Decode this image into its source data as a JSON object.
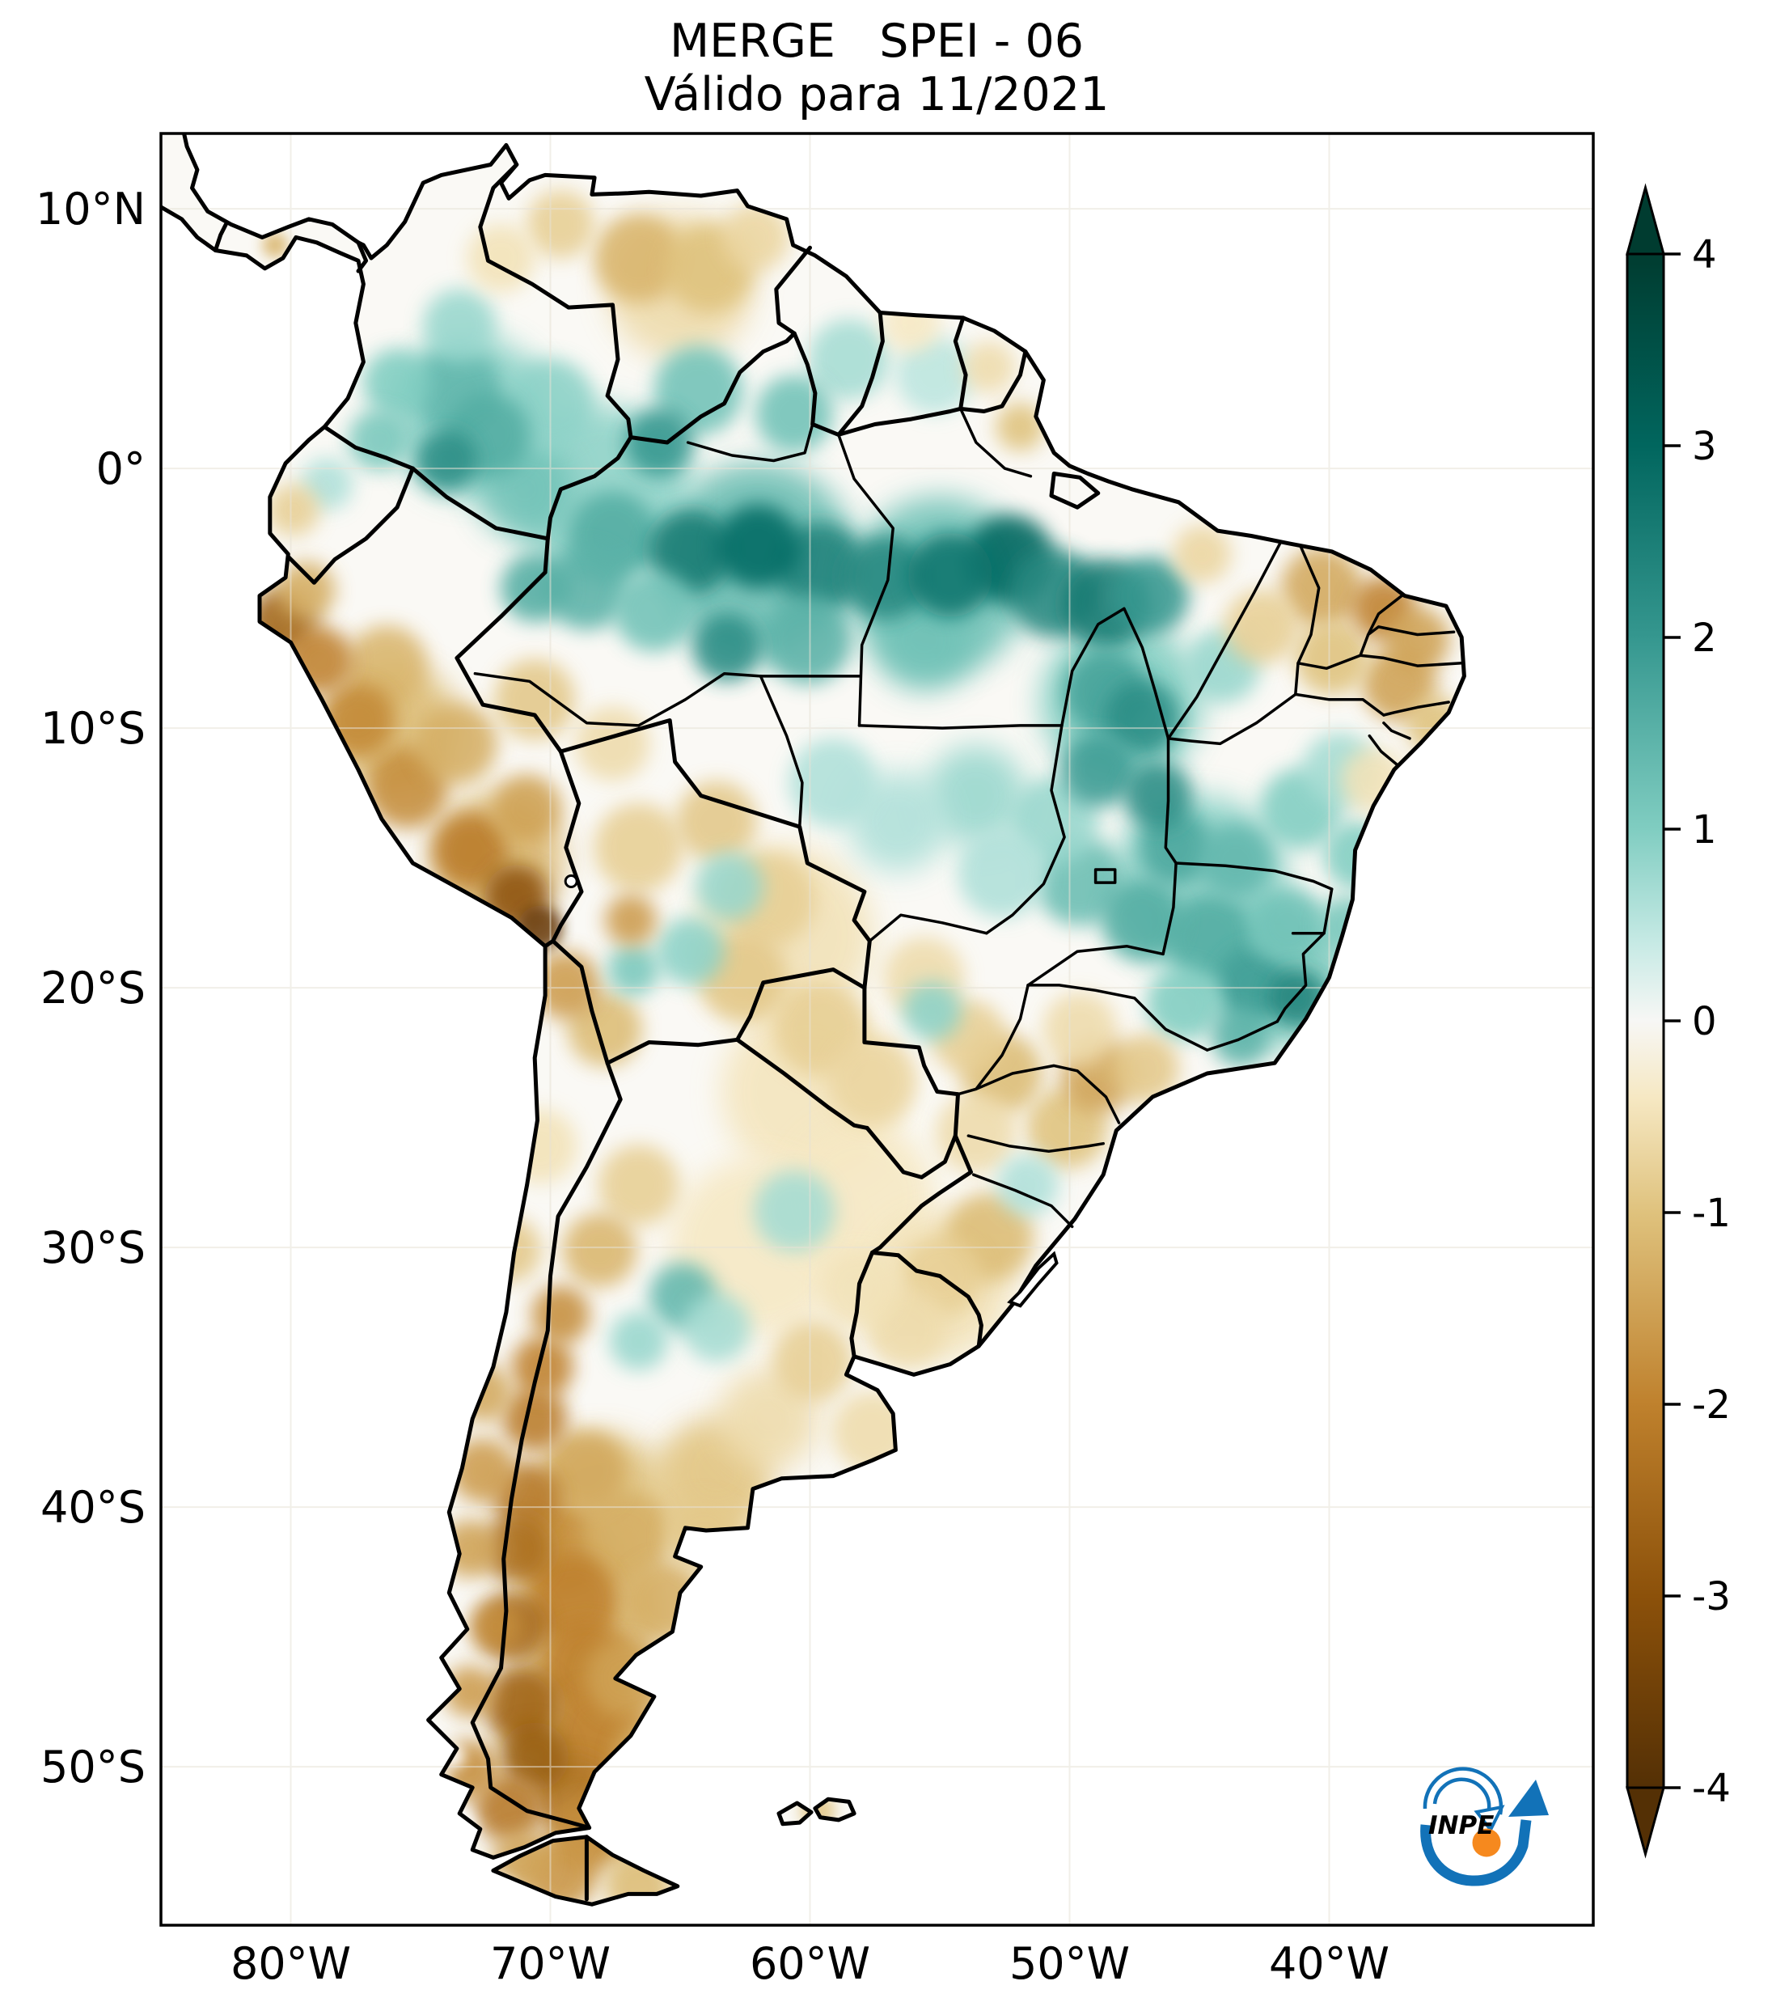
{
  "title": {
    "line1": "MERGE   SPEI - 06",
    "line2": "Válido para 11/2021"
  },
  "axes": {
    "lat_ticks": [
      {
        "label": "10°N",
        "deg": 10
      },
      {
        "label": "0°",
        "deg": 0
      },
      {
        "label": "10°S",
        "deg": -10
      },
      {
        "label": "20°S",
        "deg": -20
      },
      {
        "label": "30°S",
        "deg": -30
      },
      {
        "label": "40°S",
        "deg": -40
      },
      {
        "label": "50°S",
        "deg": -50
      }
    ],
    "lon_ticks": [
      {
        "label": "80°W",
        "deg": -80
      },
      {
        "label": "70°W",
        "deg": -70
      },
      {
        "label": "60°W",
        "deg": -60
      },
      {
        "label": "50°W",
        "deg": -50
      },
      {
        "label": "40°W",
        "deg": -40
      }
    ]
  },
  "colorbar": {
    "extend": "both",
    "ticks": [
      {
        "label": "4",
        "value": 4
      },
      {
        "label": "3",
        "value": 3
      },
      {
        "label": "2",
        "value": 2
      },
      {
        "label": "1",
        "value": 1
      },
      {
        "label": "0",
        "value": 0
      },
      {
        "label": "-1",
        "value": -1
      },
      {
        "label": "-2",
        "value": -2
      },
      {
        "label": "-3",
        "value": -3
      },
      {
        "label": "-4",
        "value": -4
      }
    ],
    "palette": [
      {
        "v": -4,
        "color": "#543005"
      },
      {
        "v": -3,
        "color": "#8c510a"
      },
      {
        "v": -2,
        "color": "#bf812d"
      },
      {
        "v": -1,
        "color": "#dfc27d"
      },
      {
        "v": -0.4,
        "color": "#f6e8c3"
      },
      {
        "v": 0,
        "color": "#f7f7f5"
      },
      {
        "v": 0.4,
        "color": "#c7eae5"
      },
      {
        "v": 1,
        "color": "#80cdc1"
      },
      {
        "v": 2,
        "color": "#35978f"
      },
      {
        "v": 3,
        "color": "#01665e"
      },
      {
        "v": 4,
        "color": "#003c30"
      }
    ]
  },
  "logo": {
    "label": "INPE",
    "blue": "#1272B8",
    "orange": "#F6891E"
  },
  "chart_data": {
    "type": "heatmap",
    "title": "MERGE SPEI - 06",
    "subtitle": "Válido para 11/2021",
    "value_range": [
      -4,
      4
    ],
    "lon_range": [
      -85,
      -29.8
    ],
    "lat_range": [
      -56.1,
      12.9
    ],
    "legend_position": "right",
    "grid": true,
    "field_blobs_lon_lat_spei_rpx": [
      [
        -62,
        -3.5,
        1.3,
        120
      ],
      [
        -55,
        -4.5,
        1.2,
        110
      ],
      [
        -68,
        -1,
        0.9,
        110
      ],
      [
        -73,
        2,
        0.9,
        100
      ],
      [
        -48,
        -9,
        1.0,
        100
      ],
      [
        -45,
        -16,
        0.9,
        110
      ],
      [
        -42,
        -19.5,
        1.0,
        90
      ],
      [
        -61,
        -18,
        -0.5,
        110
      ],
      [
        -60,
        -24,
        -0.45,
        110
      ],
      [
        -62,
        -30,
        -0.4,
        110
      ],
      [
        -58,
        -28,
        -0.4,
        90
      ],
      [
        -55,
        -31.5,
        -0.5,
        90
      ],
      [
        -65,
        7,
        -0.6,
        90
      ],
      [
        -76,
        -10,
        -1.1,
        80
      ],
      [
        -72,
        -15,
        -1.2,
        80
      ],
      [
        -68,
        -40,
        -1.0,
        90
      ],
      [
        -68.5,
        -44,
        -1.2,
        90
      ],
      [
        -69,
        -48,
        -1.3,
        90
      ],
      [
        -67,
        -51.5,
        -1.2,
        70
      ],
      [
        -64,
        -39.5,
        -0.8,
        70
      ],
      [
        -74.0,
        0.3,
        2.2,
        38
      ],
      [
        -73.6,
        3.0,
        1.4,
        55
      ],
      [
        -75.9,
        3.3,
        1.0,
        42
      ],
      [
        -72.4,
        1.3,
        1.6,
        52
      ],
      [
        -71.0,
        -0.8,
        1.2,
        60
      ],
      [
        -76.6,
        1.1,
        1.1,
        38
      ],
      [
        -73.5,
        5.5,
        0.8,
        45
      ],
      [
        -70.0,
        2.5,
        0.9,
        55
      ],
      [
        -65.8,
        1.0,
        2.0,
        42
      ],
      [
        -64.3,
        3.0,
        1.2,
        55
      ],
      [
        -60.6,
        2.1,
        1.2,
        48
      ],
      [
        -58.5,
        4.2,
        0.7,
        50
      ],
      [
        -55.2,
        3.6,
        0.5,
        48
      ],
      [
        -67.6,
        -2.6,
        1.6,
        55
      ],
      [
        -64.6,
        -3.2,
        2.6,
        52
      ],
      [
        -62.0,
        -3.0,
        2.9,
        52
      ],
      [
        -59.6,
        -3.8,
        2.4,
        55
      ],
      [
        -57.1,
        -4.2,
        2.3,
        52
      ],
      [
        -54.6,
        -4.1,
        2.7,
        52
      ],
      [
        -52.3,
        -3.5,
        3.0,
        55
      ],
      [
        -50.6,
        -4.8,
        2.3,
        55
      ],
      [
        -48.6,
        -5.2,
        2.6,
        55
      ],
      [
        -46.9,
        -4.9,
        2.0,
        48
      ],
      [
        -63.2,
        -6.9,
        2.2,
        42
      ],
      [
        -60.1,
        -6.6,
        1.5,
        55
      ],
      [
        -55.6,
        -6.6,
        1.2,
        62
      ],
      [
        -68.6,
        -4.6,
        1.5,
        52
      ],
      [
        -70.6,
        -4.6,
        1.6,
        42
      ],
      [
        -66.0,
        -5.5,
        1.2,
        50
      ],
      [
        -48.6,
        -8.6,
        1.8,
        52
      ],
      [
        -47.2,
        -9.6,
        2.2,
        46
      ],
      [
        -48.9,
        -11.6,
        1.9,
        46
      ],
      [
        -46.6,
        -12.6,
        2.2,
        42
      ],
      [
        -45.9,
        -14.6,
        1.7,
        46
      ],
      [
        -44.1,
        -7.6,
        0.8,
        46
      ],
      [
        -49.6,
        -15.9,
        1.3,
        55
      ],
      [
        -47.2,
        -17.4,
        1.6,
        50
      ],
      [
        -44.6,
        -18.1,
        1.6,
        55
      ],
      [
        -42.9,
        -19.9,
        1.9,
        46
      ],
      [
        -41.2,
        -20.4,
        2.4,
        36
      ],
      [
        -43.4,
        -21.9,
        1.5,
        36
      ],
      [
        -45.6,
        -20.6,
        1.0,
        46
      ],
      [
        -41.6,
        -17.6,
        1.2,
        46
      ],
      [
        -43.6,
        -15.1,
        1.4,
        46
      ],
      [
        -41.1,
        -13.1,
        1.0,
        50
      ],
      [
        -39.6,
        -11.6,
        0.7,
        46
      ],
      [
        -38.9,
        -14.9,
        1.0,
        42
      ],
      [
        -39.3,
        -17.6,
        1.1,
        36
      ],
      [
        -50.6,
        -13.6,
        0.8,
        55
      ],
      [
        -52.6,
        -15.6,
        0.6,
        55
      ],
      [
        -53.6,
        -12.6,
        0.8,
        62
      ],
      [
        -56.6,
        -13.6,
        0.6,
        62
      ],
      [
        -59.1,
        -12.1,
        0.6,
        55
      ],
      [
        -64.6,
        -18.6,
        0.9,
        42
      ],
      [
        -66.8,
        -19.3,
        1.1,
        32
      ],
      [
        -63.1,
        -16.1,
        0.8,
        42
      ],
      [
        -78.6,
        -0.6,
        0.6,
        32
      ],
      [
        -64.9,
        -31.9,
        1.4,
        42
      ],
      [
        -66.6,
        -33.6,
        0.8,
        36
      ],
      [
        -63.6,
        -33.1,
        0.7,
        42
      ],
      [
        -60.6,
        -28.6,
        0.7,
        50
      ],
      [
        -55.3,
        -20.9,
        0.9,
        36
      ],
      [
        -51.6,
        -27.6,
        0.6,
        38
      ],
      [
        -66.6,
        8.1,
        -1.2,
        55
      ],
      [
        -63.9,
        7.7,
        -1.0,
        55
      ],
      [
        -69.6,
        9.4,
        -0.8,
        42
      ],
      [
        -62.1,
        8.9,
        -0.7,
        42
      ],
      [
        -71.9,
        8.1,
        -0.5,
        42
      ],
      [
        -80.6,
        8.6,
        -1.2,
        16
      ],
      [
        -53.1,
        3.9,
        -0.6,
        32
      ],
      [
        -51.9,
        1.6,
        -1.0,
        30
      ],
      [
        -56.1,
        5.6,
        -0.4,
        36
      ],
      [
        -44.9,
        -3.3,
        -0.7,
        36
      ],
      [
        -42.6,
        -6.1,
        -0.8,
        46
      ],
      [
        -40.3,
        -4.6,
        -1.4,
        50
      ],
      [
        -37.9,
        -5.4,
        -2.0,
        40
      ],
      [
        -36.6,
        -6.6,
        -1.5,
        40
      ],
      [
        -37.3,
        -8.3,
        -1.5,
        46
      ],
      [
        -35.9,
        -9.9,
        -1.0,
        36
      ],
      [
        -39.9,
        -7.3,
        -1.0,
        46
      ],
      [
        -38.3,
        -12.0,
        -0.5,
        40
      ],
      [
        -80.3,
        -5.9,
        -2.6,
        42
      ],
      [
        -78.9,
        -7.4,
        -2.0,
        42
      ],
      [
        -77.4,
        -9.7,
        -1.9,
        46
      ],
      [
        -75.5,
        -12.3,
        -1.8,
        50
      ],
      [
        -73.1,
        -14.7,
        -2.1,
        46
      ],
      [
        -71.3,
        -16.5,
        -3.0,
        40
      ],
      [
        -70.4,
        -17.7,
        -3.6,
        28
      ],
      [
        -69.4,
        -19.9,
        -1.6,
        42
      ],
      [
        -67.9,
        -21.6,
        -1.1,
        46
      ],
      [
        -79.4,
        -4.7,
        -1.3,
        36
      ],
      [
        -76.3,
        -7.6,
        -1.2,
        50
      ],
      [
        -73.6,
        -10.6,
        -1.3,
        50
      ],
      [
        -70.9,
        -13.1,
        -1.5,
        42
      ],
      [
        -70.6,
        -8.9,
        -0.9,
        50
      ],
      [
        -67.6,
        -10.6,
        -0.6,
        46
      ],
      [
        -66.6,
        -14.6,
        -0.8,
        55
      ],
      [
        -63.6,
        -13.6,
        -0.9,
        50
      ],
      [
        -61.6,
        -16.6,
        -0.8,
        58
      ],
      [
        -62.6,
        -19.6,
        -0.9,
        55
      ],
      [
        -59.6,
        -21.6,
        -0.8,
        58
      ],
      [
        -66.9,
        -17.4,
        -1.6,
        32
      ],
      [
        -79.9,
        -1.6,
        -0.8,
        32
      ],
      [
        -57.6,
        -23.6,
        -0.7,
        55
      ],
      [
        -53.9,
        -21.9,
        -0.8,
        46
      ],
      [
        -52.6,
        -23.3,
        -1.1,
        50
      ],
      [
        -48.9,
        -23.4,
        -1.5,
        46
      ],
      [
        -47.1,
        -23.1,
        -0.9,
        42
      ],
      [
        -50.1,
        -25.4,
        -1.0,
        50
      ],
      [
        -53.6,
        -25.6,
        -0.6,
        50
      ],
      [
        -49.6,
        -21.6,
        -0.6,
        46
      ],
      [
        -55.6,
        -19.6,
        -0.6,
        50
      ],
      [
        -53.1,
        -29.6,
        -1.1,
        55
      ],
      [
        -54.9,
        -31.1,
        -0.8,
        50
      ],
      [
        -56.3,
        -33.1,
        -0.6,
        50
      ],
      [
        -58.1,
        -31.6,
        -0.5,
        50
      ],
      [
        -59.9,
        -34.4,
        -0.8,
        50
      ],
      [
        -61.6,
        -36.6,
        -0.6,
        62
      ],
      [
        -63.6,
        -38.6,
        -0.9,
        66
      ],
      [
        -57.6,
        -37.1,
        -0.6,
        50
      ],
      [
        -66.6,
        -27.6,
        -0.8,
        50
      ],
      [
        -68.1,
        -30.1,
        -1.2,
        46
      ],
      [
        -69.6,
        -32.6,
        -1.8,
        36
      ],
      [
        -70.3,
        -34.6,
        -2.0,
        38
      ],
      [
        -70.6,
        -36.6,
        -2.1,
        40
      ],
      [
        -72.6,
        -35.6,
        -1.4,
        36
      ],
      [
        -72.6,
        -38.6,
        -1.6,
        40
      ],
      [
        -73.1,
        -41.6,
        -1.5,
        36
      ],
      [
        -71.6,
        -30.1,
        -0.9,
        40
      ],
      [
        -70.4,
        -26.1,
        -0.5,
        46
      ],
      [
        -68.6,
        -38.6,
        -1.4,
        50
      ],
      [
        -70.9,
        -39.6,
        -2.2,
        42
      ],
      [
        -71.3,
        -41.6,
        -2.4,
        42
      ],
      [
        -69.6,
        -41.6,
        -1.8,
        55
      ],
      [
        -67.1,
        -41.1,
        -1.3,
        55
      ],
      [
        -64.1,
        -41.1,
        -0.9,
        46
      ],
      [
        -65.6,
        -43.6,
        -1.3,
        50
      ],
      [
        -69.1,
        -43.6,
        -2.0,
        55
      ],
      [
        -71.4,
        -44.6,
        -2.5,
        42
      ],
      [
        -68.6,
        -46.1,
        -2.0,
        55
      ],
      [
        -71.1,
        -47.6,
        -2.6,
        46
      ],
      [
        -67.1,
        -46.6,
        -1.5,
        50
      ],
      [
        -68.1,
        -48.6,
        -2.0,
        55
      ],
      [
        -70.6,
        -49.6,
        -2.8,
        42
      ],
      [
        -66.1,
        -49.6,
        -1.3,
        46
      ],
      [
        -69.1,
        -51.1,
        -2.3,
        50
      ],
      [
        -71.6,
        -51.6,
        -2.2,
        42
      ],
      [
        -68.6,
        -52.6,
        -1.8,
        46
      ],
      [
        -69.6,
        -54.1,
        -1.7,
        46
      ],
      [
        -66.6,
        -54.6,
        -1.1,
        42
      ],
      [
        -72.1,
        -44.6,
        -1.8,
        32
      ],
      [
        -73.1,
        -47.1,
        -1.6,
        32
      ],
      [
        -73.1,
        -50.1,
        -1.8,
        36
      ],
      [
        -71.1,
        -53.6,
        -1.5,
        36
      ],
      [
        -59.7,
        -51.7,
        -0.9,
        22
      ]
    ],
    "no_data_lon_lat_rpx": [
      [
        -74.6,
        -43.6,
        18
      ],
      [
        -74.9,
        -46.1,
        20
      ],
      [
        -75.1,
        -48.6,
        20
      ],
      [
        -74.6,
        -50.6,
        22
      ],
      [
        -73.6,
        -52.3,
        22
      ],
      [
        -71.9,
        -54.9,
        20
      ],
      [
        -74.2,
        -44.9,
        14
      ],
      [
        -73.8,
        -49.6,
        16
      ]
    ]
  }
}
